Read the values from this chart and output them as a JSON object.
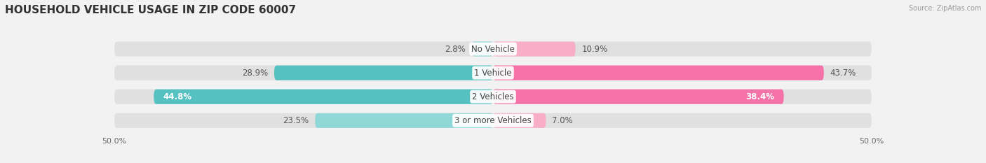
{
  "title": "HOUSEHOLD VEHICLE USAGE IN ZIP CODE 60007",
  "source": "Source: ZipAtlas.com",
  "categories": [
    "No Vehicle",
    "1 Vehicle",
    "2 Vehicles",
    "3 or more Vehicles"
  ],
  "owner_values": [
    2.8,
    28.9,
    44.8,
    23.5
  ],
  "renter_values": [
    10.9,
    43.7,
    38.4,
    7.0
  ],
  "owner_color": "#56C1C1",
  "owner_color_light": "#90D8D8",
  "renter_color": "#F472A8",
  "renter_color_light": "#F9AEC8",
  "bg_color": "#f2f2f2",
  "bar_bg_color": "#e0e0e0",
  "xlim": 50.0,
  "bar_height": 0.62,
  "figsize": [
    14.06,
    2.33
  ],
  "dpi": 100,
  "title_fontsize": 11,
  "label_fontsize": 8.5,
  "value_fontsize": 8.5
}
